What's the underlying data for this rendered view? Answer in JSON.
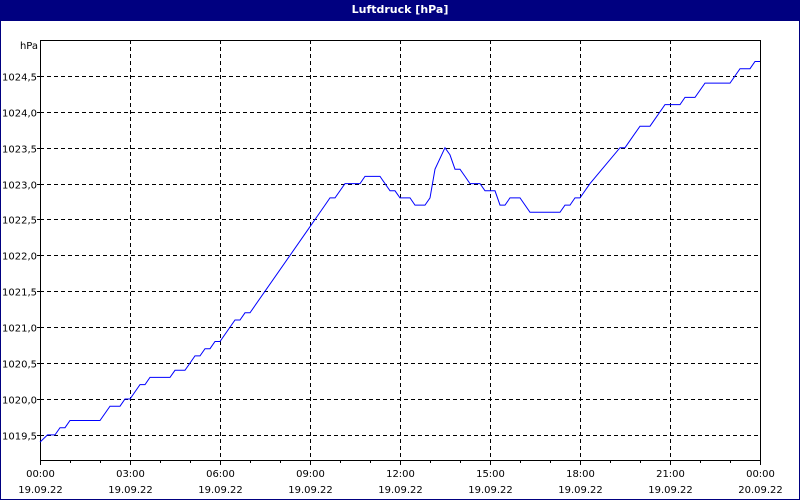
{
  "window": {
    "title": "Luftdruck [hPa]"
  },
  "chart_data": {
    "type": "line",
    "title": "Luftdruck [hPa]",
    "ylabel": "hPa",
    "xlabel": "",
    "ylim": [
      1019.15,
      1025.0
    ],
    "xlim": [
      "19.09.22 00:00",
      "20.09.22 00:00"
    ],
    "grid": true,
    "line_color": "#0000ff",
    "y_ticks": [
      1019.5,
      1020.0,
      1020.5,
      1021.0,
      1021.5,
      1022.0,
      1022.5,
      1023.0,
      1023.5,
      1024.0,
      1024.5
    ],
    "y_tick_labels": [
      "1019,5",
      "1020,0",
      "1020,5",
      "1021,0",
      "1021,5",
      "1022,0",
      "1022,5",
      "1023,0",
      "1023,5",
      "1024,0",
      "1024,5"
    ],
    "x_ticks": [
      {
        "time": "00:00",
        "date": "19.09.22"
      },
      {
        "time": "03:00",
        "date": "19.09.22"
      },
      {
        "time": "06:00",
        "date": "19.09.22"
      },
      {
        "time": "09:00",
        "date": "19.09.22"
      },
      {
        "time": "12:00",
        "date": "19.09.22"
      },
      {
        "time": "15:00",
        "date": "19.09.22"
      },
      {
        "time": "18:00",
        "date": "19.09.22"
      },
      {
        "time": "21:00",
        "date": "19.09.22"
      },
      {
        "time": "00:00",
        "date": "20.09.22"
      }
    ],
    "series": [
      {
        "x": [
          "19.09.22 00:00",
          "19.09.22 00:15",
          "19.09.22 00:30",
          "19.09.22 00:40",
          "19.09.22 00:50",
          "19.09.22 01:00",
          "19.09.22 02:00",
          "19.09.22 02:20",
          "19.09.22 02:40",
          "19.09.22 02:50",
          "19.09.22 03:00",
          "19.09.22 03:20",
          "19.09.22 03:30",
          "19.09.22 03:40",
          "19.09.22 04:20",
          "19.09.22 04:30",
          "19.09.22 04:50",
          "19.09.22 05:10",
          "19.09.22 05:20",
          "19.09.22 05:30",
          "19.09.22 05:40",
          "19.09.22 05:50",
          "19.09.22 06:00",
          "19.09.22 06:30",
          "19.09.22 06:40",
          "19.09.22 06:50",
          "19.09.22 07:00",
          "19.09.22 09:00",
          "19.09.22 09:10",
          "19.09.22 09:30",
          "19.09.22 09:40",
          "19.09.22 09:50",
          "19.09.22 10:10",
          "19.09.22 10:40",
          "19.09.22 10:50",
          "19.09.22 11:20",
          "19.09.22 11:40",
          "19.09.22 11:50",
          "19.09.22 12:00",
          "19.09.22 12:20",
          "19.09.22 12:30",
          "19.09.22 12:50",
          "19.09.22 13:00",
          "19.09.22 13:10",
          "19.09.22 13:30",
          "19.09.22 13:40",
          "19.09.22 13:50",
          "19.09.22 14:00",
          "19.09.22 14:10",
          "19.09.22 14:20",
          "19.09.22 14:40",
          "19.09.22 14:50",
          "19.09.22 15:10",
          "19.09.22 15:20",
          "19.09.22 15:30",
          "19.09.22 15:40",
          "19.09.22 16:00",
          "19.09.22 16:20",
          "19.09.22 17:20",
          "19.09.22 17:30",
          "19.09.22 17:40",
          "19.09.22 17:50",
          "19.09.22 18:00",
          "19.09.22 18:20",
          "19.09.22 19:20",
          "19.09.22 19:30",
          "19.09.22 20:00",
          "19.09.22 20:20",
          "19.09.22 20:50",
          "19.09.22 21:20",
          "19.09.22 21:30",
          "19.09.22 21:50",
          "19.09.22 22:10",
          "19.09.22 23:00",
          "19.09.22 23:20",
          "19.09.22 23:40",
          "19.09.22 23:50",
          "20.09.22 00:00"
        ],
        "y": [
          1019.4,
          1019.5,
          1019.5,
          1019.6,
          1019.6,
          1019.7,
          1019.7,
          1019.9,
          1019.9,
          1020.0,
          1020.0,
          1020.2,
          1020.2,
          1020.3,
          1020.3,
          1020.4,
          1020.4,
          1020.6,
          1020.6,
          1020.7,
          1020.7,
          1020.8,
          1020.8,
          1021.1,
          1021.1,
          1021.2,
          1021.2,
          1022.4,
          1022.5,
          1022.7,
          1022.8,
          1022.8,
          1023.0,
          1023.0,
          1023.1,
          1023.1,
          1022.9,
          1022.9,
          1022.8,
          1022.8,
          1022.7,
          1022.7,
          1022.8,
          1023.2,
          1023.5,
          1023.4,
          1023.2,
          1023.2,
          1023.1,
          1023.0,
          1023.0,
          1022.9,
          1022.9,
          1022.7,
          1022.7,
          1022.8,
          1022.8,
          1022.6,
          1022.6,
          1022.7,
          1022.7,
          1022.8,
          1022.8,
          1023.0,
          1023.5,
          1023.5,
          1023.8,
          1023.8,
          1024.1,
          1024.1,
          1024.2,
          1024.2,
          1024.4,
          1024.4,
          1024.6,
          1024.6,
          1024.7,
          1024.7
        ]
      }
    ]
  }
}
